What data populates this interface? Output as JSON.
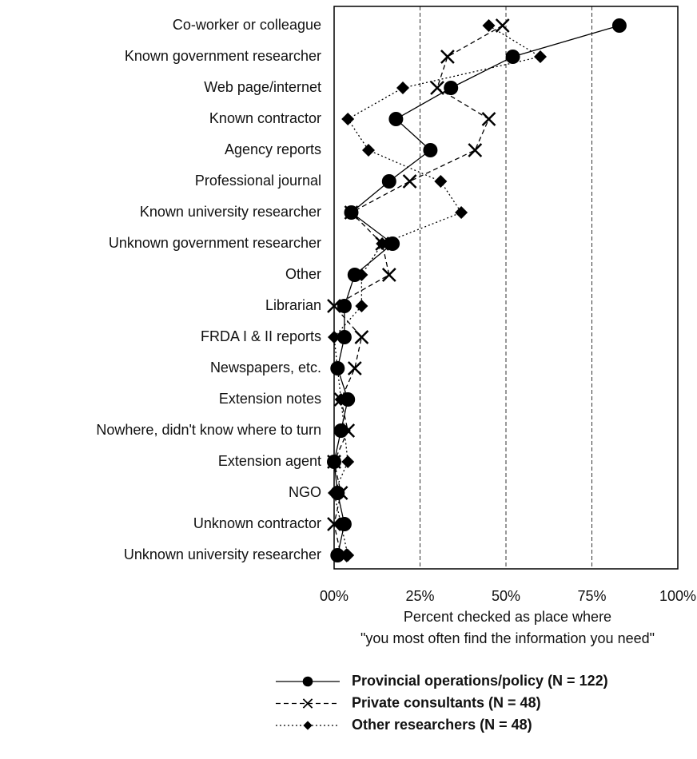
{
  "chart_data": {
    "type": "line",
    "categories": [
      "Co-worker or colleague",
      "Known government researcher",
      "Web page/internet",
      "Known contractor",
      "Agency reports",
      "Professional journal",
      "Known university researcher",
      "Unknown government researcher",
      "Other",
      "Librarian",
      "FRDA I & II reports",
      "Newspapers, etc.",
      "Extension notes",
      "Nowhere, didn't know where to turn",
      "Extension agent",
      "NGO",
      "Unknown contractor",
      "Unknown university researcher"
    ],
    "xlabel": [
      "Percent checked as place where",
      "\"you most often find the information you need\""
    ],
    "xlim": [
      0,
      100
    ],
    "xticks": [
      {
        "value": 0,
        "label": "00%"
      },
      {
        "value": 25,
        "label": "25%"
      },
      {
        "value": 50,
        "label": "50%"
      },
      {
        "value": 75,
        "label": "75%"
      },
      {
        "value": 100,
        "label": "100%"
      }
    ],
    "grid": true,
    "series": [
      {
        "name": "Provincial operations/policy (N = 122)",
        "color": "#000000",
        "marker": "circle",
        "dash": "solid",
        "values": [
          83,
          52,
          34,
          18,
          28,
          16,
          5,
          17,
          6,
          3,
          3,
          1,
          4,
          2,
          0,
          1,
          3,
          1
        ]
      },
      {
        "name": "Private consultants (N = 48)",
        "color": "#000000",
        "marker": "x",
        "dash": "dashed",
        "values": [
          49,
          33,
          30,
          45,
          41,
          22,
          5,
          14,
          16,
          0,
          8,
          6,
          2,
          4,
          0,
          2,
          0,
          2
        ]
      },
      {
        "name": "Other researchers (N = 48)",
        "color": "#000000",
        "marker": "diamond",
        "dash": "dotted",
        "values": [
          45,
          60,
          20,
          4,
          10,
          31,
          37,
          14,
          8,
          8,
          0,
          1,
          2,
          3,
          4,
          0,
          2,
          4
        ]
      }
    ]
  }
}
